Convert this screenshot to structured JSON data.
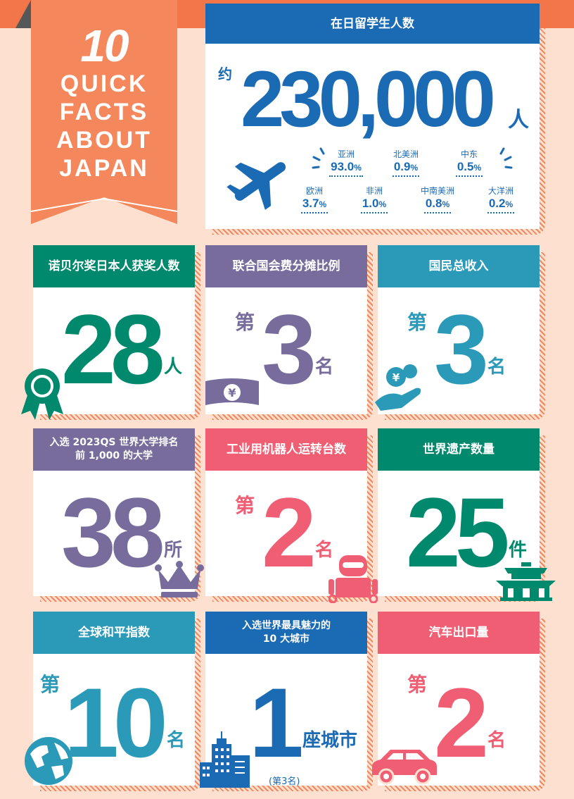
{
  "banner": {
    "number": "10",
    "lines": [
      "QUICK",
      "FACTS",
      "ABOUT",
      "JAPAN"
    ]
  },
  "colors": {
    "blue": "#1a6ab4",
    "green": "#00896c",
    "purple": "#786c9c",
    "teal": "#2a9ab8",
    "pink": "#ef5e73",
    "orange": "#f2764a",
    "background": "#fde0d0"
  },
  "students": {
    "header": "在日留学生人数",
    "prefix": "约",
    "number": "230,000",
    "unit": "人",
    "regions": [
      {
        "name": "亚洲",
        "value": "93.0",
        "pct": "%"
      },
      {
        "name": "北美洲",
        "value": "0.9",
        "pct": "%"
      },
      {
        "name": "中东",
        "value": "0.5",
        "pct": "%"
      },
      {
        "name": "欧洲",
        "value": "3.7",
        "pct": "%"
      },
      {
        "name": "非洲",
        "value": "1.0",
        "pct": "%"
      },
      {
        "name": "中南美洲",
        "value": "0.8",
        "pct": "%"
      },
      {
        "name": "大洋洲",
        "value": "0.2",
        "pct": "%"
      }
    ]
  },
  "cards": [
    {
      "header": "诺贝尔奖日本人获奖人数",
      "number": "28",
      "unit": "人",
      "icon": "award-ribbon-icon"
    },
    {
      "header": "联合国会费分摊比例",
      "prefix": "第",
      "number": "3",
      "unit": "名",
      "icon": "yen-banknote-icon"
    },
    {
      "header": "国民总收入",
      "prefix": "第",
      "number": "3",
      "unit": "名",
      "icon": "hand-yen-coin-icon"
    },
    {
      "header": "入选 2023QS 世界大学排名\n前 1,000 的大学",
      "number": "38",
      "unit": "所",
      "icon": "crown-icon"
    },
    {
      "header": "工业用机器人运转台数",
      "prefix": "第",
      "number": "2",
      "unit": "名",
      "icon": "robot-icon"
    },
    {
      "header": "世界遗产数量",
      "number": "25",
      "unit": "件",
      "icon": "temple-icon"
    },
    {
      "header": "全球和平指数",
      "prefix": "第",
      "number": "10",
      "unit": "名",
      "icon": "globe-icon"
    },
    {
      "header": "入选世界最具魅力的\n10 大城市",
      "number": "1",
      "unit": "座城市",
      "note": "(第3名)",
      "icon": "city-buildings-icon"
    },
    {
      "header": "汽车出口量",
      "prefix": "第",
      "number": "2",
      "unit": "名",
      "icon": "car-icon"
    }
  ]
}
